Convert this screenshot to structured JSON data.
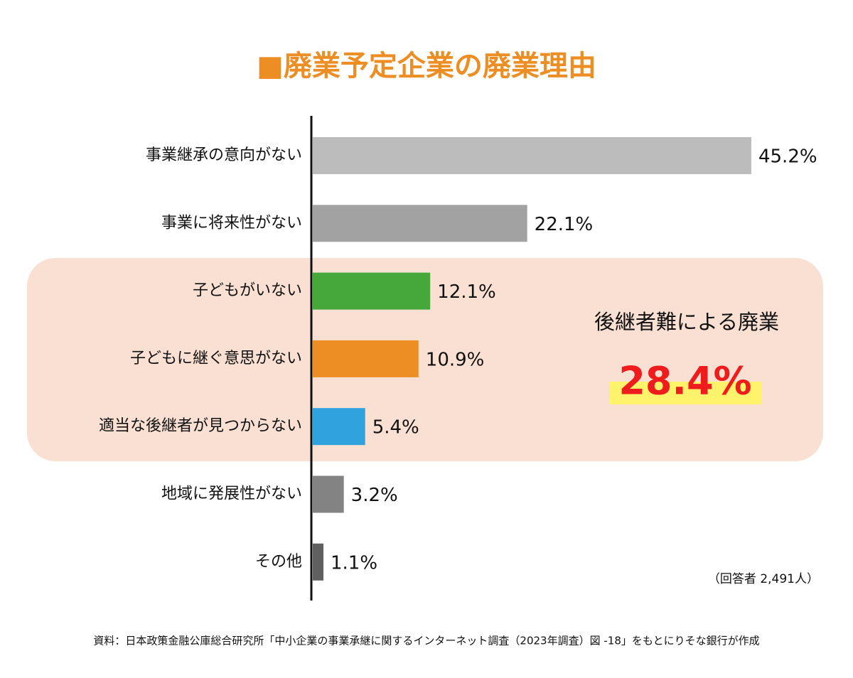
{
  "chart_data": {
    "type": "hbar",
    "title": "■廃業予定企業の廃業理由",
    "categories": [
      "事業継承の意向がない",
      "事業に将来性がない",
      "子どもがいない",
      "子どもに継ぐ意思がない",
      "適当な後継者が見つからない",
      "地域に発展性がない",
      "その他"
    ],
    "values": [
      45.2,
      22.1,
      12.1,
      10.9,
      5.4,
      3.2,
      1.1
    ],
    "value_labels": [
      "45.2%",
      "22.1%",
      "12.1%",
      "10.9%",
      "5.4%",
      "3.2%",
      "1.1%"
    ],
    "colors": [
      "#bcbcbc",
      "#a2a2a2",
      "#46a83a",
      "#ec8e24",
      "#30a3df",
      "#838383",
      "#606060"
    ],
    "annotation": {
      "label": "後継者難による廃業",
      "value_text": "28.4%"
    },
    "note": "（回答者 2,491人）",
    "source": "資料：日本政策金融公庫総合研究所「中小企業の事業承継に関するインターネット調査（2023年調査）図 -18」をもとにりそな銀行が作成"
  }
}
